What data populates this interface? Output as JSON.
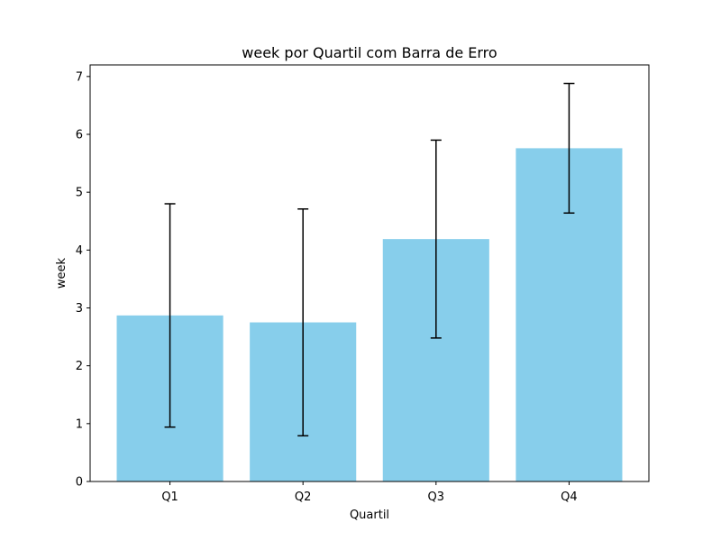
{
  "chart_data": {
    "type": "bar",
    "title": "week por Quartil com Barra de Erro",
    "xlabel": "Quartil",
    "ylabel": "week",
    "categories": [
      "Q1",
      "Q2",
      "Q3",
      "Q4"
    ],
    "values": [
      2.87,
      2.75,
      4.19,
      5.76
    ],
    "errors": [
      1.93,
      1.96,
      1.71,
      1.12
    ],
    "ylim": [
      0,
      7.2
    ],
    "yticks": [
      "0",
      "1",
      "2",
      "3",
      "4",
      "5",
      "6",
      "7"
    ],
    "bar_color": "#87ceeb",
    "error_color": "#000000",
    "grid": false,
    "legend": "none"
  }
}
